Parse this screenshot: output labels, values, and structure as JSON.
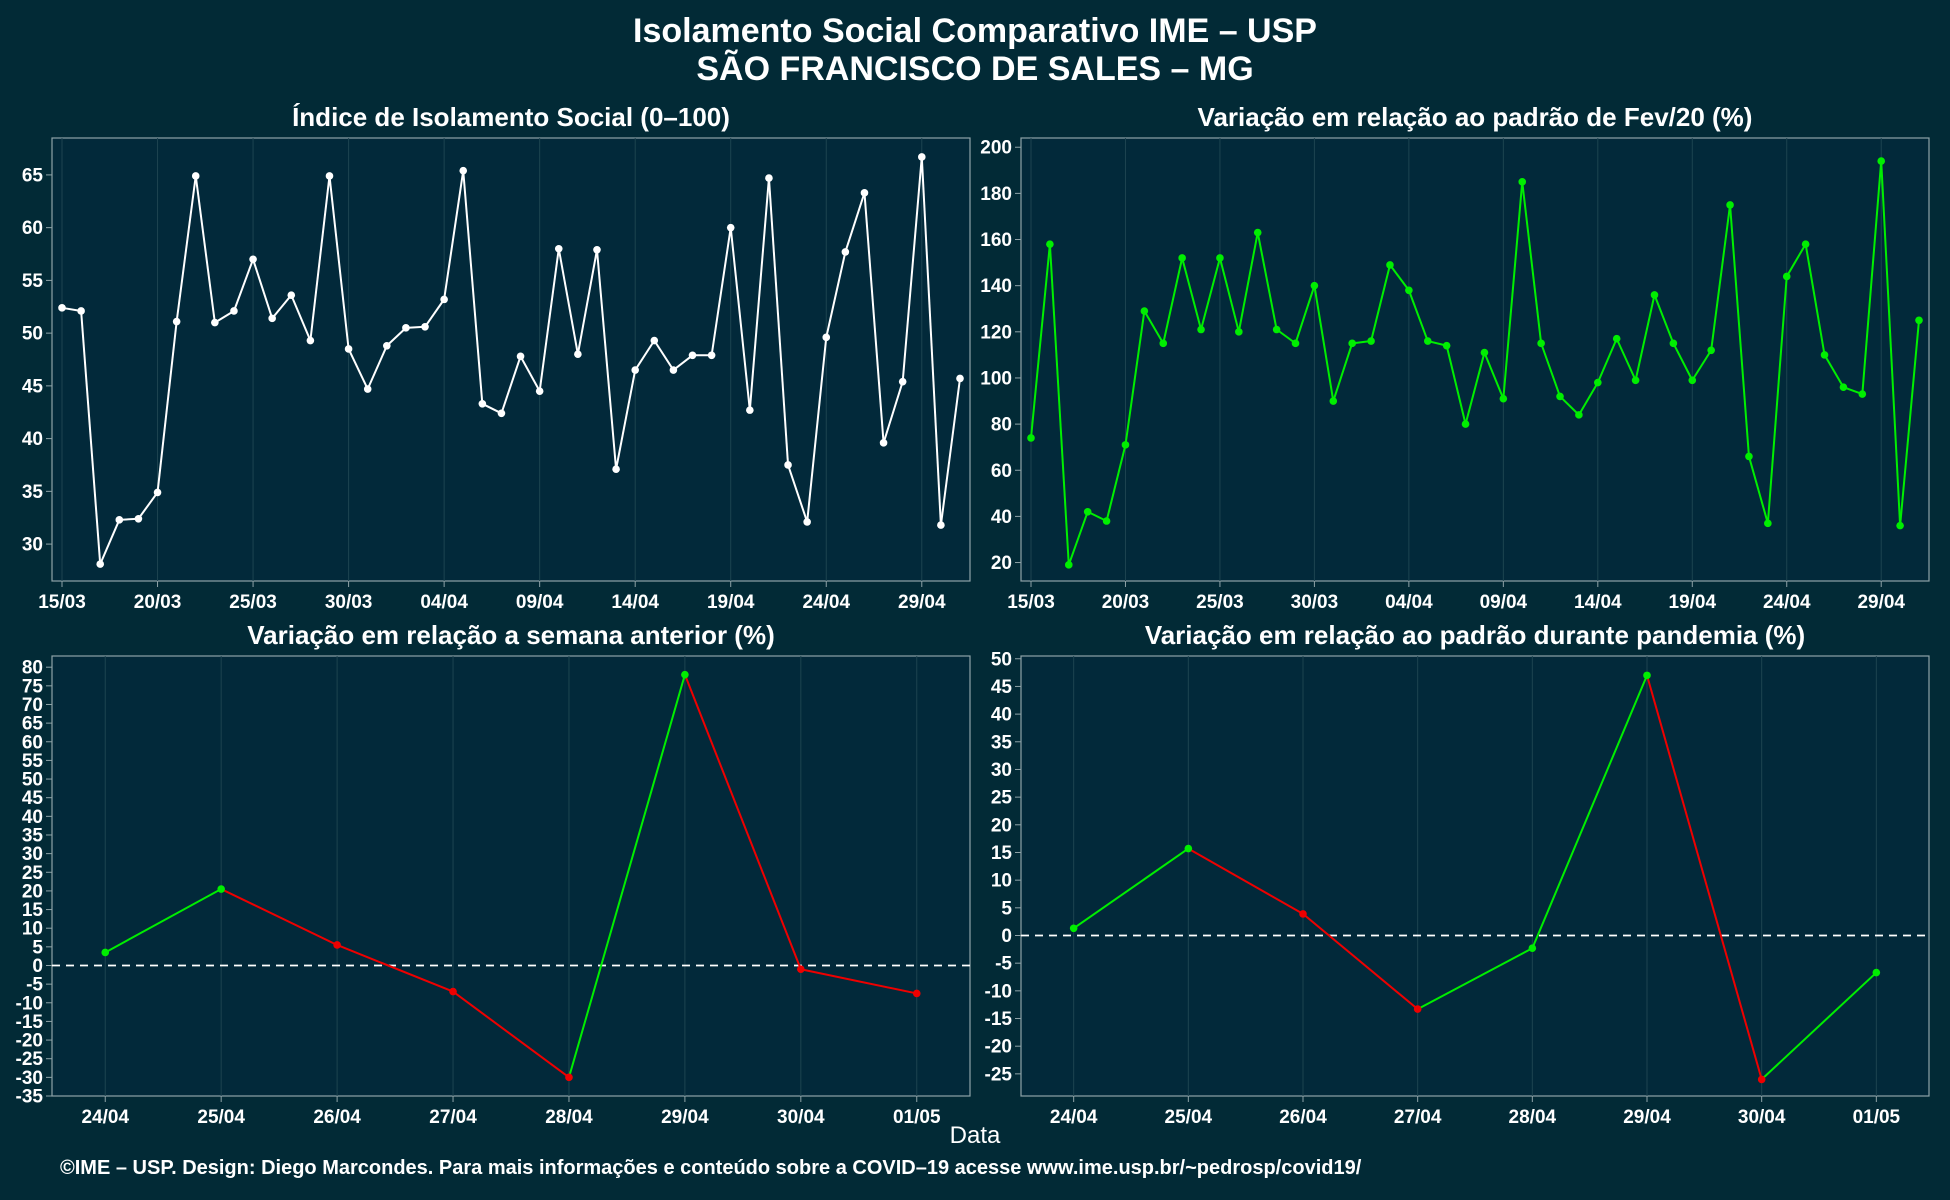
{
  "title": {
    "line1": "Isolamento Social Comparativo IME – USP",
    "line2": "SÃO FRANCISCO DE SALES – MG"
  },
  "xlabel_common": "Data",
  "footer": "©IME – USP. Design: Diego Marcondes. Para mais informações e conteúdo sobre a COVID–19 acesse www.ime.usp.br/~pedrosp/covid19/",
  "colors": {
    "background": "#022a36",
    "white_series": "#ffffff",
    "green_series": "#00ee00",
    "red_series": "#ee0000",
    "grid": "#1d4450",
    "axis": "#8fa3a8"
  },
  "chart_data": [
    {
      "type": "line",
      "title": "Índice de Isolamento Social (0–100)",
      "color": "white",
      "x_start": "15/03",
      "x_ticks": [
        "15/03",
        "20/03",
        "25/03",
        "30/03",
        "04/04",
        "09/04",
        "14/04",
        "19/04",
        "24/04",
        "29/04"
      ],
      "y_ticks": [
        30,
        35,
        40,
        45,
        50,
        55,
        60,
        65
      ],
      "ylim": [
        26.5,
        68.5
      ],
      "grid": true,
      "values": [
        52.4,
        52.1,
        28.1,
        32.3,
        32.4,
        34.9,
        51.1,
        64.9,
        51.0,
        52.1,
        57.0,
        51.4,
        53.6,
        49.3,
        64.9,
        48.5,
        44.7,
        48.8,
        50.5,
        50.6,
        53.2,
        65.4,
        43.3,
        42.4,
        47.8,
        44.5,
        58.0,
        48.0,
        57.9,
        37.1,
        46.5,
        49.3,
        46.5,
        47.9,
        47.9,
        60.0,
        42.7,
        64.7,
        37.5,
        32.1,
        49.6,
        57.7,
        63.3,
        39.6,
        45.4,
        66.7,
        31.8,
        45.7
      ]
    },
    {
      "type": "line",
      "title": "Variação em relação ao padrão de Fev/20 (%)",
      "color": "green",
      "x_start": "15/03",
      "x_ticks": [
        "15/03",
        "20/03",
        "25/03",
        "30/03",
        "04/04",
        "09/04",
        "14/04",
        "19/04",
        "24/04",
        "29/04"
      ],
      "y_ticks": [
        20,
        40,
        60,
        80,
        100,
        120,
        140,
        160,
        180,
        200
      ],
      "ylim": [
        12,
        204
      ],
      "grid": true,
      "values": [
        74,
        158,
        19,
        42,
        38,
        71,
        129,
        115,
        152,
        121,
        152,
        120,
        163,
        121,
        115,
        140,
        90,
        115,
        116,
        149,
        138,
        116,
        114,
        80,
        111,
        91,
        185,
        115,
        92,
        84,
        98,
        117,
        99,
        136,
        115,
        99,
        112,
        175,
        66,
        37,
        144,
        158,
        110,
        96,
        93,
        194,
        36,
        125
      ]
    },
    {
      "type": "line",
      "title": "Variação em relação a semana anterior (%)",
      "color_rule": "green when increasing, red when decreasing",
      "categories": [
        "24/04",
        "25/04",
        "26/04",
        "27/04",
        "28/04",
        "29/04",
        "30/04",
        "01/05"
      ],
      "values": [
        3.5,
        20.5,
        5.5,
        -7.0,
        -30.0,
        78.0,
        -1.0,
        -7.5
      ],
      "y_ticks": [
        -35,
        -30,
        -25,
        -20,
        -15,
        -10,
        -5,
        0,
        5,
        10,
        15,
        20,
        25,
        30,
        35,
        40,
        45,
        50,
        55,
        60,
        65,
        70,
        75,
        80
      ],
      "ylim": [
        -35,
        83
      ],
      "zero_line": "dashed",
      "grid": true
    },
    {
      "type": "line",
      "title": "Variação em relação ao padrão durante pandemia (%)",
      "color_rule": "green when increasing, red when decreasing",
      "categories": [
        "24/04",
        "25/04",
        "26/04",
        "27/04",
        "28/04",
        "29/04",
        "30/04",
        "01/05"
      ],
      "values": [
        1.3,
        15.7,
        3.9,
        -13.3,
        -2.3,
        47.0,
        -26.0,
        -6.7
      ],
      "y_ticks": [
        -25,
        -20,
        -15,
        -10,
        -5,
        0,
        5,
        10,
        15,
        20,
        25,
        30,
        35,
        40,
        45,
        50
      ],
      "ylim": [
        -29,
        50.5
      ],
      "zero_line": "dashed",
      "grid": true
    }
  ]
}
